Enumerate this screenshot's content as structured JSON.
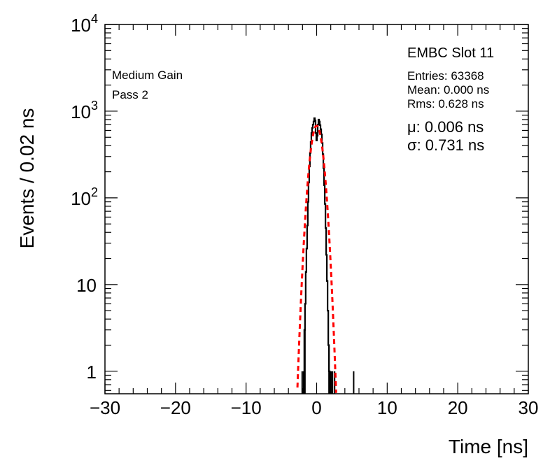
{
  "chart_data": {
    "type": "histogram",
    "xlabel": "Time [ns]",
    "ylabel": "Events / 0.02 ns",
    "xlim": [
      -30,
      30
    ],
    "ylim": [
      0.55,
      10000
    ],
    "yscale": "log",
    "x_ticks": [
      {
        "value": -30,
        "label": "−30"
      },
      {
        "value": -20,
        "label": "−20"
      },
      {
        "value": -10,
        "label": "−10"
      },
      {
        "value": 0,
        "label": "0"
      },
      {
        "value": 10,
        "label": "10"
      },
      {
        "value": 20,
        "label": "20"
      },
      {
        "value": 30,
        "label": "30"
      }
    ],
    "y_ticks": [
      {
        "value": 1,
        "label": "1",
        "base": "",
        "exp": ""
      },
      {
        "value": 10,
        "label": "10",
        "base": "",
        "exp": ""
      },
      {
        "value": 100,
        "label": "",
        "base": "10",
        "exp": "2"
      },
      {
        "value": 1000,
        "label": "",
        "base": "10",
        "exp": "3"
      },
      {
        "value": 10000,
        "label": "",
        "base": "10",
        "exp": "4"
      }
    ],
    "title": "EMBC Slot 11",
    "annotations": [
      "Medium Gain",
      "Pass 2"
    ],
    "stats": {
      "entries": "Entries: 63368",
      "mean": "Mean: 0.000 ns",
      "rms": "Rms: 0.628 ns"
    },
    "fit": {
      "mu_text": "μ: 0.006 ns",
      "sigma_text": "σ: 0.731 ns",
      "mu": 0.006,
      "sigma": 0.731,
      "amplitude": 680,
      "color": "#ff0000",
      "style": "dashed"
    },
    "series": [
      {
        "name": "data",
        "color": "#000000",
        "points": [
          [
            -2.2,
            0
          ],
          [
            -2.1,
            1
          ],
          [
            -2.0,
            0
          ],
          [
            -1.9,
            1
          ],
          [
            -1.8,
            0
          ],
          [
            -1.7,
            3
          ],
          [
            -1.6,
            6
          ],
          [
            -1.5,
            14
          ],
          [
            -1.4,
            26
          ],
          [
            -1.3,
            48
          ],
          [
            -1.2,
            90
          ],
          [
            -1.1,
            150
          ],
          [
            -1.0,
            230
          ],
          [
            -0.9,
            330
          ],
          [
            -0.8,
            440
          ],
          [
            -0.7,
            560
          ],
          [
            -0.6,
            640
          ],
          [
            -0.5,
            700
          ],
          [
            -0.4,
            760
          ],
          [
            -0.3,
            830
          ],
          [
            -0.2,
            780
          ],
          [
            -0.1,
            560
          ],
          [
            0.0,
            460
          ],
          [
            0.1,
            520
          ],
          [
            0.2,
            700
          ],
          [
            0.3,
            800
          ],
          [
            0.4,
            760
          ],
          [
            0.5,
            690
          ],
          [
            0.6,
            620
          ],
          [
            0.7,
            540
          ],
          [
            0.8,
            430
          ],
          [
            0.9,
            320
          ],
          [
            1.0,
            220
          ],
          [
            1.1,
            140
          ],
          [
            1.2,
            85
          ],
          [
            1.3,
            45
          ],
          [
            1.4,
            22
          ],
          [
            1.5,
            11
          ],
          [
            1.6,
            5
          ],
          [
            1.7,
            2
          ],
          [
            1.8,
            1
          ],
          [
            1.9,
            1
          ],
          [
            2.0,
            1
          ],
          [
            2.1,
            0
          ],
          [
            2.2,
            1
          ],
          [
            2.3,
            0
          ],
          [
            2.4,
            0
          ],
          [
            2.5,
            1
          ],
          [
            2.6,
            0
          ],
          [
            5.2,
            1
          ]
        ]
      }
    ]
  }
}
